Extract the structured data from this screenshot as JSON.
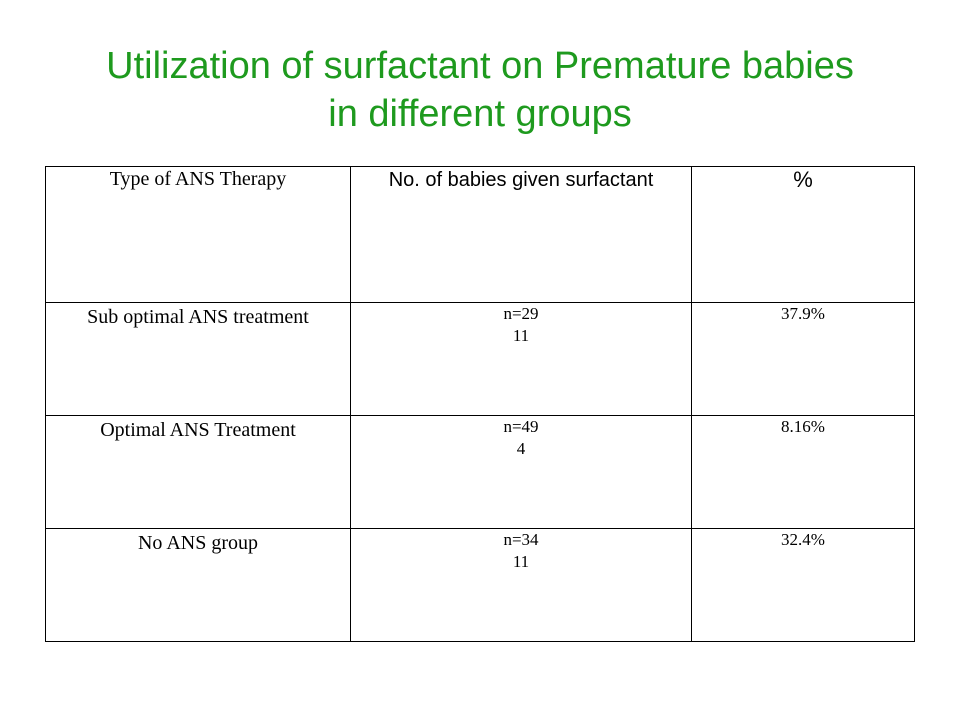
{
  "title": {
    "line1": "Utilization of surfactant on Premature babies",
    "line2": "in different groups"
  },
  "table": {
    "headers": [
      "Type of ANS Therapy",
      "No. of babies given surfactant",
      "%"
    ],
    "rows": [
      {
        "group": "Sub optimal ANS treatment",
        "n": "n=29",
        "count": "11",
        "percent": "37.9%"
      },
      {
        "group": "Optimal ANS Treatment",
        "n": "n=49",
        "count": "4",
        "percent": "8.16%"
      },
      {
        "group": "No ANS group",
        "n": "n=34",
        "count": "11",
        "percent": "32.4%"
      }
    ]
  },
  "colors": {
    "title": "#1e9a1e",
    "text": "#000000",
    "border": "#000000",
    "background": "#ffffff"
  }
}
